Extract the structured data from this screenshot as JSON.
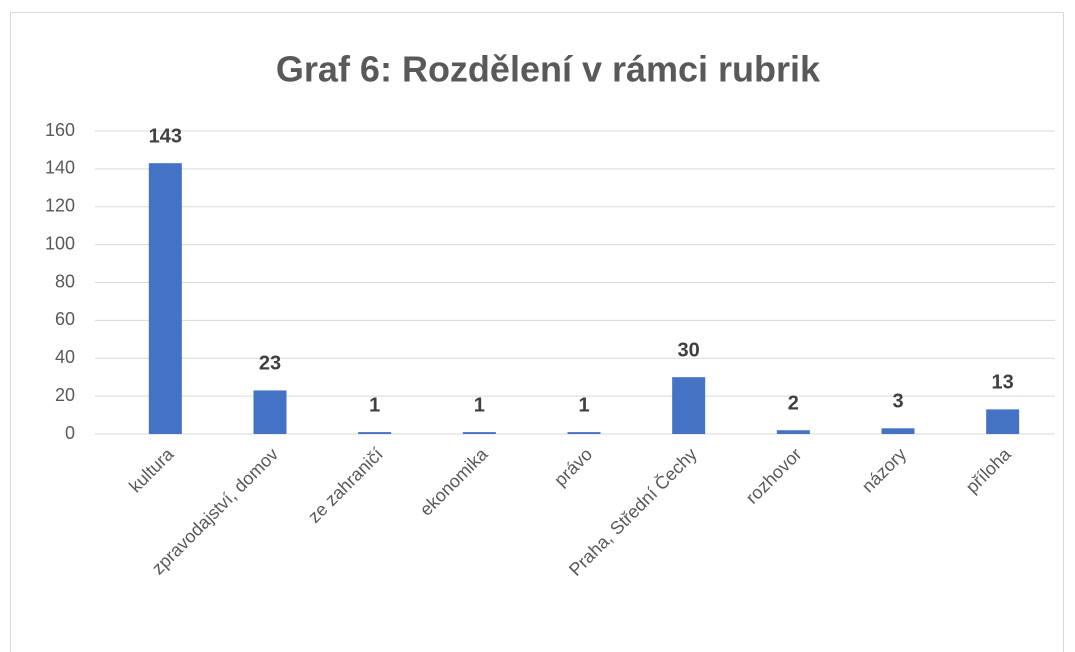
{
  "chart_data": {
    "type": "bar",
    "title": "Graf 6: Rozdělení v rámci rubrik",
    "categories": [
      "kultura",
      "zpravodajství, domov",
      "ze zahraničí",
      "ekonomika",
      "právo",
      "Praha, Střední Čechy",
      "rozhovor",
      "názory",
      "příloha"
    ],
    "values": [
      143,
      23,
      1,
      1,
      1,
      30,
      2,
      3,
      13
    ],
    "color": "#4472c4",
    "ylim": [
      0,
      160
    ],
    "yticks": [
      0,
      20,
      40,
      60,
      80,
      100,
      120,
      140,
      160
    ],
    "grid": true
  }
}
